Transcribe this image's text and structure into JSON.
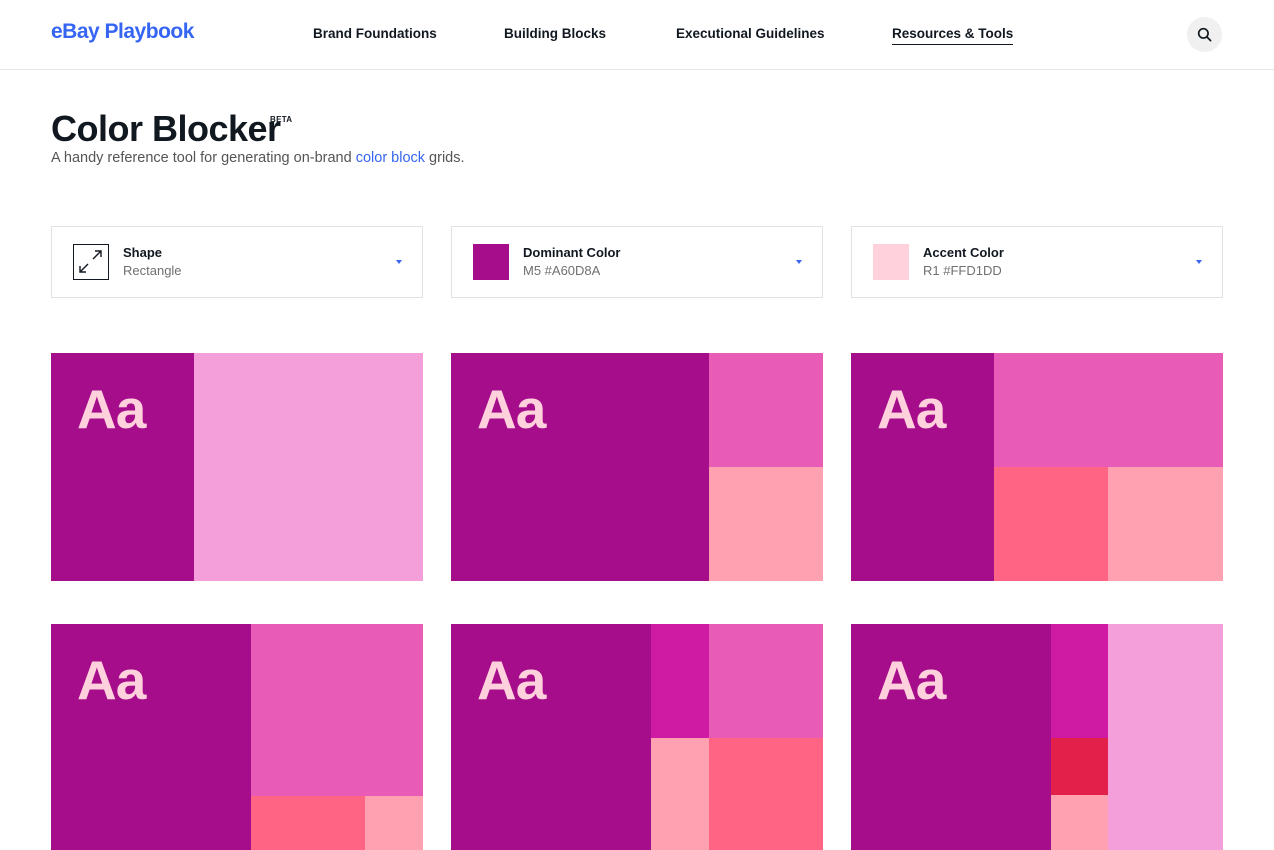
{
  "header": {
    "logo": "eBay Playbook",
    "nav": [
      {
        "label": "Brand Foundations"
      },
      {
        "label": "Building Blocks"
      },
      {
        "label": "Executional Guidelines"
      },
      {
        "label": "Resources & Tools",
        "active": true
      }
    ],
    "search_icon": "search-icon"
  },
  "page": {
    "title": "Color Blocker",
    "badge": "BETA",
    "subtitle_pre": "A handy reference tool for generating on-brand ",
    "subtitle_link": "color block",
    "subtitle_post": " grids."
  },
  "selectors": {
    "shape": {
      "label": "Shape",
      "value": "Rectangle",
      "icon": "expand-arrows-icon"
    },
    "dominant": {
      "label": "Dominant Color",
      "value": "M5 #A60D8A",
      "color": "#A60D8A"
    },
    "accent": {
      "label": "Accent Color",
      "value": "R1 #FFD1DD",
      "color": "#FFD1DD"
    }
  },
  "grid": {
    "sample_text": "Aa",
    "text_color": "#FFD1DD",
    "colors": {
      "dominant": "#A60D8A",
      "pink_light": "#F49FD9",
      "pink_mid": "#E85CB8",
      "rose": "#FF6484",
      "rose_light": "#FFA1B1",
      "magenta": "#CF1BA3",
      "red": "#E3204A"
    }
  }
}
